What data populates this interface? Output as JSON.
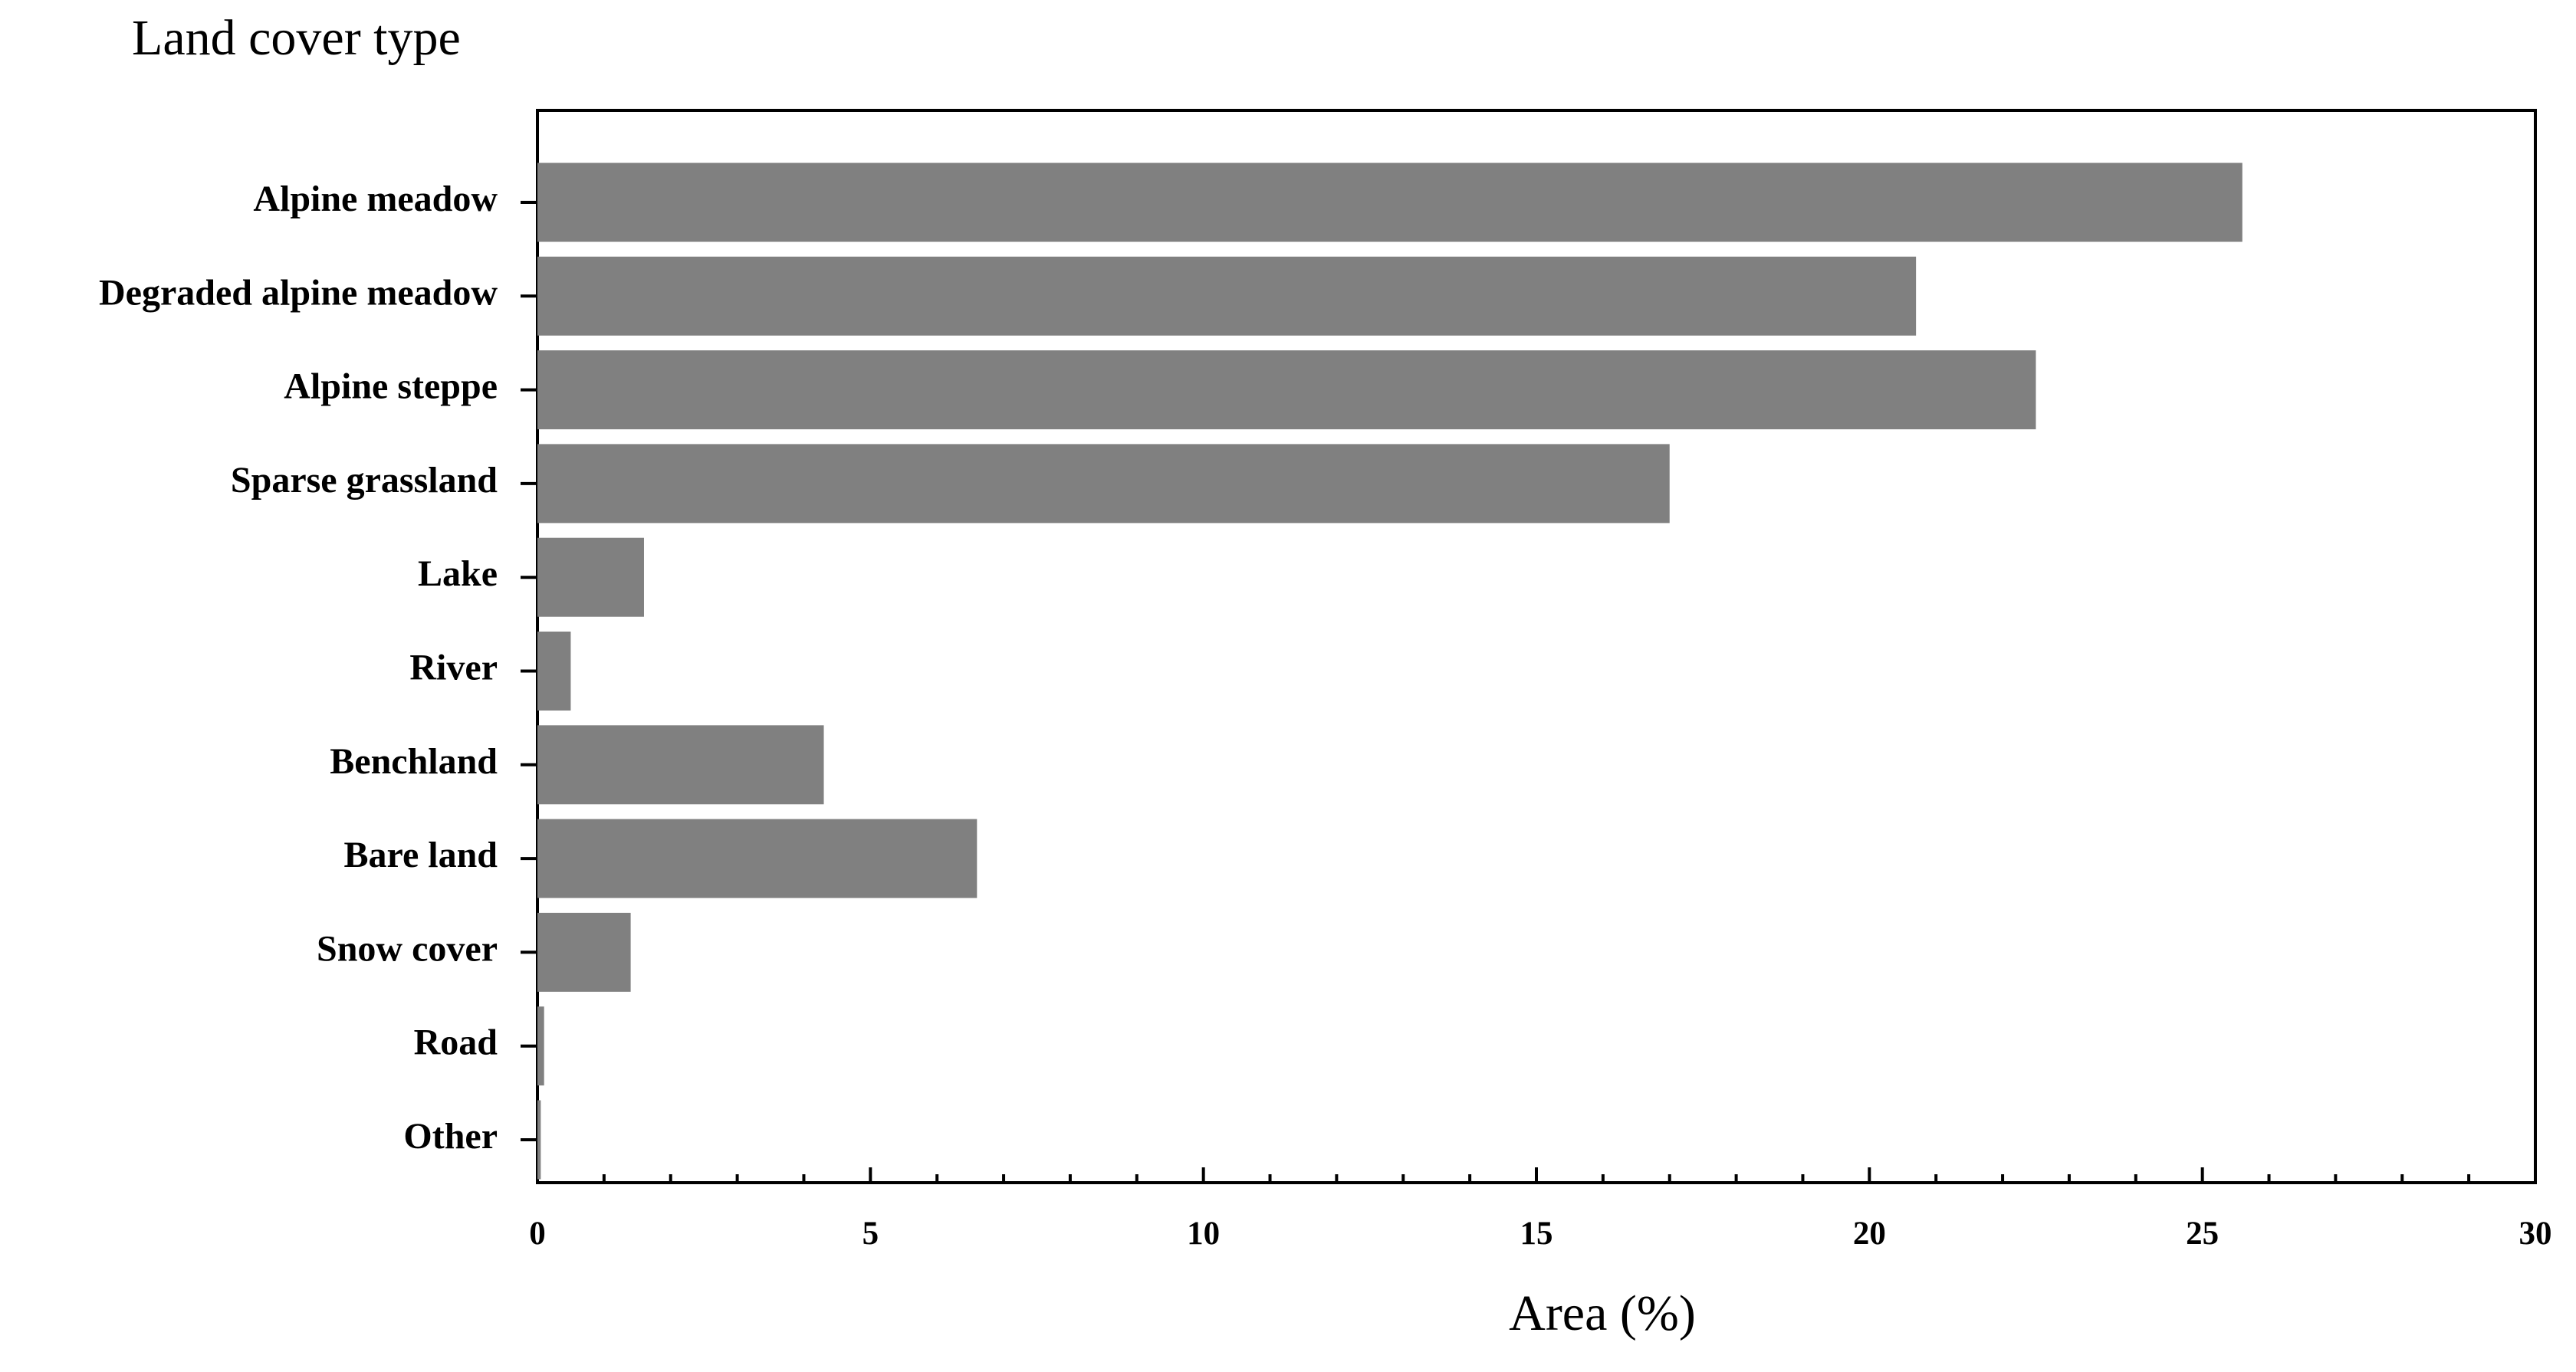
{
  "chart_data": {
    "type": "hbar",
    "ylabel": "Land cover type",
    "xlabel": "Area (%)",
    "categories": [
      "Alpine meadow",
      "Degraded alpine meadow",
      "Alpine steppe",
      "Sparse grassland",
      "Lake",
      "River",
      "Benchland",
      "Bare land",
      "Snow cover",
      "Road",
      "Other"
    ],
    "values": [
      25.6,
      20.7,
      22.5,
      17.0,
      1.6,
      0.5,
      4.3,
      6.6,
      1.4,
      0.1,
      0.05
    ],
    "color": "#808080",
    "xlim": [
      0,
      30
    ],
    "xticks": [
      0,
      5,
      10,
      15,
      20,
      25,
      30
    ],
    "xminor": [
      1,
      2,
      3,
      4,
      6,
      7,
      8,
      9,
      11,
      12,
      13,
      14,
      16,
      17,
      18,
      19,
      21,
      22,
      23,
      24,
      26,
      27,
      28,
      29
    ]
  }
}
